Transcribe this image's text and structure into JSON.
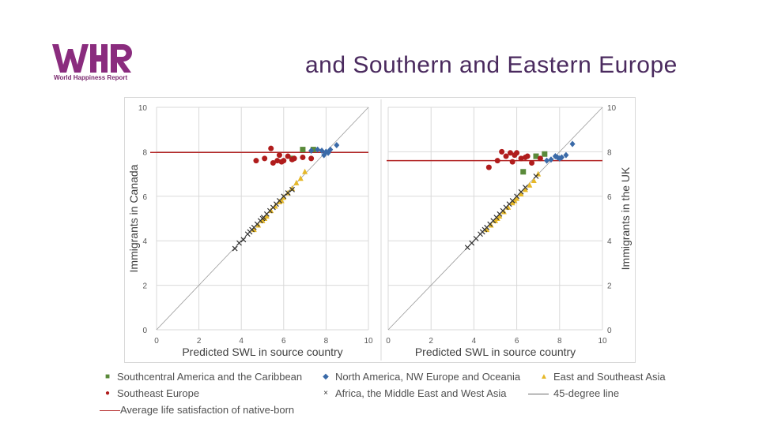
{
  "logo": {
    "text": "World Happiness Report",
    "color": "#8a2c7e"
  },
  "slide": {
    "title": "and Southern and Eastern Europe"
  },
  "colors": {
    "central_america": "#5a8a3a",
    "nw_europe": "#3a6aa8",
    "east_asia": "#e6b828",
    "southeast_europe": "#b01c1c",
    "africa_me": "#333333",
    "forty_five": "#999999",
    "native_line": "#b22222"
  },
  "legend": [
    {
      "key": "central_america",
      "label": "Southcentral America and the Caribbean",
      "symbol": "■"
    },
    {
      "key": "nw_europe",
      "label": "North America, NW Europe and Oceania",
      "symbol": "◆"
    },
    {
      "key": "east_asia",
      "label": "East and Southeast Asia",
      "symbol": "▲"
    },
    {
      "key": "southeast_europe",
      "label": "Southeast Europe",
      "symbol": "●"
    },
    {
      "key": "africa_me",
      "label": "Africa, the Middle East and West Asia",
      "symbol": "×"
    },
    {
      "key": "forty_five",
      "label": "45-degree line",
      "symbol": "—"
    },
    {
      "key": "native_line",
      "label": "Average life satisfaction of native-born",
      "symbol": "—"
    }
  ],
  "chart_data": [
    {
      "type": "scatter",
      "title": "",
      "xlabel": "Predicted SWL in source country",
      "ylabel": "Immigrants in Canada",
      "xlim": [
        0,
        10
      ],
      "ylim": [
        0,
        10
      ],
      "xticks": [
        "0",
        "2",
        "4",
        "6",
        "8",
        "10"
      ],
      "yticks": [
        "0",
        "2",
        "4",
        "6",
        "8",
        "10"
      ],
      "native_born_average": 7.97,
      "series": [
        {
          "name": "Southcentral America and the Caribbean",
          "key": "central_america",
          "marker": "square",
          "x": [
            6.9,
            6.4,
            7.4
          ],
          "y": [
            8.1,
            7.7,
            8.1
          ]
        },
        {
          "name": "North America, NW Europe and Oceania",
          "key": "nw_europe",
          "marker": "diamond",
          "x": [
            7.3,
            7.6,
            7.8,
            8.0,
            8.1,
            8.2,
            8.5,
            7.9
          ],
          "y": [
            8.05,
            8.1,
            8.05,
            8.0,
            7.95,
            8.1,
            8.3,
            7.85
          ]
        },
        {
          "name": "East and Southeast Asia",
          "key": "east_asia",
          "marker": "triangle",
          "x": [
            4.6,
            4.8,
            5.0,
            5.2,
            5.4,
            5.6,
            5.8,
            6.0,
            6.2,
            6.4,
            6.6,
            6.8,
            7.0,
            5.1,
            5.9
          ],
          "y": [
            4.5,
            4.7,
            4.9,
            5.1,
            5.35,
            5.55,
            5.75,
            5.95,
            6.15,
            6.35,
            6.6,
            6.8,
            7.1,
            5.0,
            5.8
          ]
        },
        {
          "name": "Southeast Europe",
          "key": "southeast_europe",
          "marker": "circle",
          "x": [
            4.7,
            5.1,
            5.4,
            5.5,
            5.7,
            5.8,
            6.0,
            6.2,
            6.4,
            6.5,
            6.9,
            5.9,
            7.3
          ],
          "y": [
            7.6,
            7.7,
            8.15,
            7.5,
            7.6,
            7.85,
            7.6,
            7.8,
            7.65,
            7.7,
            7.75,
            7.55,
            7.7
          ]
        },
        {
          "name": "Africa, the Middle East and West Asia",
          "key": "africa_me",
          "marker": "x",
          "x": [
            3.7,
            3.9,
            4.1,
            4.3,
            4.5,
            4.6,
            4.75,
            4.9,
            5.05,
            5.2,
            5.35,
            5.5,
            5.65,
            5.8,
            6.0,
            6.2,
            6.4,
            4.4,
            5.0
          ],
          "y": [
            3.65,
            3.9,
            4.05,
            4.3,
            4.5,
            4.6,
            4.75,
            4.9,
            5.05,
            5.2,
            5.35,
            5.5,
            5.65,
            5.8,
            6.0,
            6.15,
            6.3,
            4.4,
            5.0
          ]
        }
      ]
    },
    {
      "type": "scatter",
      "title": "",
      "xlabel": "Predicted SWL in source country",
      "ylabel": "Immigrants in the UK",
      "xlim": [
        0,
        10
      ],
      "ylim": [
        0,
        10
      ],
      "xticks": [
        "0",
        "2",
        "4",
        "6",
        "8",
        "10"
      ],
      "yticks": [
        "0",
        "2",
        "4",
        "6",
        "8",
        "10"
      ],
      "native_born_average": 7.6,
      "series": [
        {
          "name": "Southcentral America and the Caribbean",
          "key": "central_america",
          "marker": "square",
          "x": [
            6.9,
            7.3,
            6.3
          ],
          "y": [
            7.8,
            7.9,
            7.1
          ]
        },
        {
          "name": "North America, NW Europe and Oceania",
          "key": "nw_europe",
          "marker": "diamond",
          "x": [
            7.4,
            7.6,
            7.8,
            8.0,
            8.1,
            8.3,
            8.6,
            7.9
          ],
          "y": [
            7.6,
            7.65,
            7.8,
            7.7,
            7.75,
            7.85,
            8.35,
            7.75
          ]
        },
        {
          "name": "East and Southeast Asia",
          "key": "east_asia",
          "marker": "triangle",
          "x": [
            4.6,
            4.8,
            5.0,
            5.2,
            5.4,
            5.6,
            5.8,
            6.0,
            6.2,
            6.4,
            6.6,
            6.8,
            7.0,
            5.1,
            5.9
          ],
          "y": [
            4.5,
            4.7,
            4.9,
            5.1,
            5.3,
            5.5,
            5.7,
            5.9,
            6.1,
            6.3,
            6.5,
            6.7,
            7.0,
            5.0,
            5.8
          ]
        },
        {
          "name": "Southeast Europe",
          "key": "southeast_europe",
          "marker": "circle",
          "x": [
            4.7,
            5.1,
            5.3,
            5.5,
            5.7,
            5.9,
            6.0,
            6.2,
            6.4,
            6.7,
            7.1,
            5.8,
            6.5
          ],
          "y": [
            7.3,
            7.6,
            8.0,
            7.8,
            7.95,
            7.85,
            7.95,
            7.7,
            7.75,
            7.5,
            7.7,
            7.55,
            7.8
          ]
        },
        {
          "name": "Africa, the Middle East and West Asia",
          "key": "africa_me",
          "marker": "x",
          "x": [
            3.7,
            3.9,
            4.1,
            4.3,
            4.5,
            4.6,
            4.75,
            4.9,
            5.05,
            5.2,
            5.35,
            5.5,
            5.65,
            5.8,
            6.0,
            6.2,
            6.4,
            4.4,
            6.9
          ],
          "y": [
            3.7,
            3.9,
            4.1,
            4.3,
            4.5,
            4.6,
            4.75,
            4.9,
            5.05,
            5.2,
            5.35,
            5.5,
            5.65,
            5.8,
            6.0,
            6.2,
            6.4,
            4.4,
            6.9
          ]
        }
      ]
    }
  ]
}
